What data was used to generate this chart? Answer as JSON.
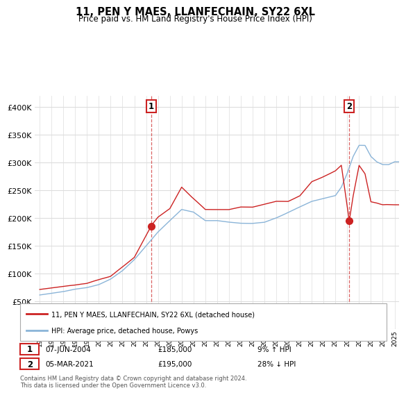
{
  "title": "11, PEN Y MAES, LLANFECHAIN, SY22 6XL",
  "subtitle": "Price paid vs. HM Land Registry's House Price Index (HPI)",
  "legend_line1": "11, PEN Y MAES, LLANFECHAIN, SY22 6XL (detached house)",
  "legend_line2": "HPI: Average price, detached house, Powys",
  "annotation1_date": "07-JUN-2004",
  "annotation1_price": "£185,000",
  "annotation1_hpi": "9% ↑ HPI",
  "annotation2_date": "05-MAR-2021",
  "annotation2_price": "£195,000",
  "annotation2_hpi": "28% ↓ HPI",
  "footer1": "Contains HM Land Registry data © Crown copyright and database right 2024.",
  "footer2": "This data is licensed under the Open Government Licence v3.0.",
  "sale1_year": 2004.44,
  "sale1_price": 185000,
  "sale2_year": 2021.17,
  "sale2_price": 195000,
  "hpi_color": "#8ab4d8",
  "price_color": "#cc2222",
  "background_color": "#ffffff",
  "grid_color": "#dddddd",
  "ylim_min": 0,
  "ylim_max": 420000,
  "xlim_min": 1994.6,
  "xlim_max": 2025.4
}
